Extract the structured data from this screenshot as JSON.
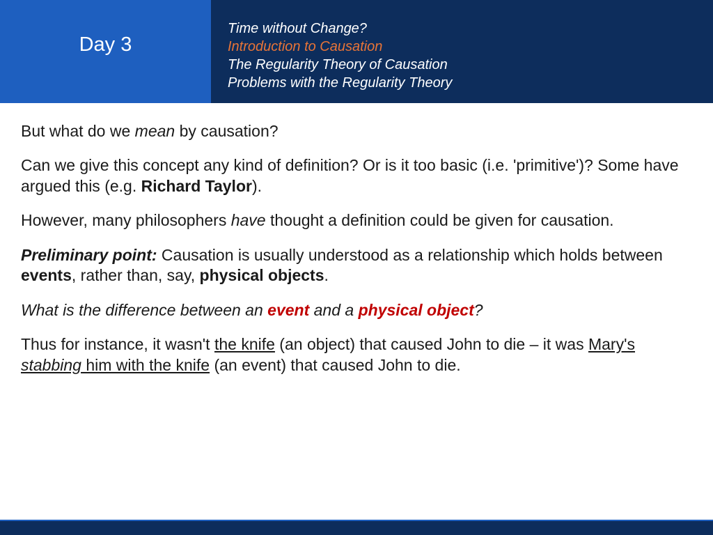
{
  "colors": {
    "header_left_bg": "#1e5fbf",
    "header_right_bg": "#0d2d5c",
    "body_bg": "#ffffff",
    "title_text": "#ffffff",
    "topic_text": "#ffffff",
    "topic_highlight": "#e87437",
    "content_text": "#1a1a1a",
    "red_emphasis": "#c00000",
    "footer_bg": "#0d2d5c"
  },
  "typography": {
    "title_fontsize": 29,
    "topic_fontsize": 20,
    "content_fontsize": 23,
    "font_family_heading": "Tahoma",
    "font_family_body": "Verdana"
  },
  "header": {
    "title": "Day 3",
    "topics": [
      {
        "text": "Time without Change?",
        "highlighted": false
      },
      {
        "text": "Introduction to Causation",
        "highlighted": true
      },
      {
        "text": "The Regularity Theory of Causation",
        "highlighted": false
      },
      {
        "text": "Problems with the Regularity Theory",
        "highlighted": false
      }
    ]
  },
  "content": {
    "p1": {
      "t1": "But what do we ",
      "t2": "mean",
      "t3": " by causation?"
    },
    "p2": {
      "t1": "Can we give this concept any kind of definition? Or is it too basic (i.e. 'primitive')? Some have argued this (e.g. ",
      "t2": "Richard Taylor",
      "t3": ")."
    },
    "p3": {
      "t1": "However, many philosophers ",
      "t2": "have",
      "t3": " thought a definition could be given for causation."
    },
    "p4": {
      "t1": "Preliminary point:",
      "t2": " Causation is usually understood as a relationship which holds between ",
      "t3": "events",
      "t4": ", rather than, say, ",
      "t5": "physical objects",
      "t6": "."
    },
    "p5": {
      "t1": "What is the difference between an ",
      "t2": "event",
      "t3": " and a ",
      "t4": "physical object",
      "t5": "?"
    },
    "p6": {
      "t1": "Thus for instance, it wasn't ",
      "t2": "the knife",
      "t3": " (an object) that caused John to die – it was ",
      "t4": "Mary's ",
      "t5": "stabbing",
      "t6": " him with the knife",
      "t7": " (an event) that caused John to die."
    }
  }
}
